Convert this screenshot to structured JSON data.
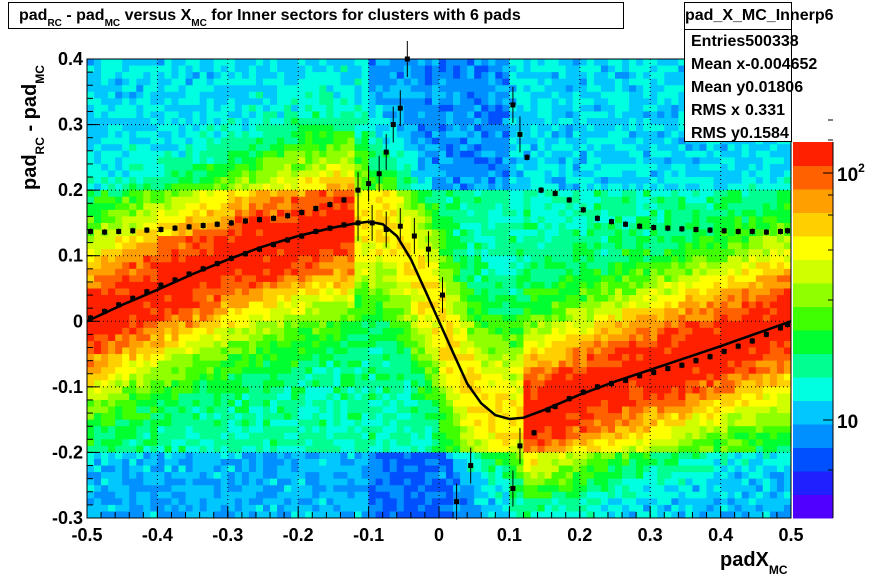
{
  "chart_data": {
    "type": "heatmap",
    "title_parts": [
      "pad",
      "RC",
      " - pad",
      "MC",
      " versus X",
      "MC",
      " for Inner sectors for clusters with 6 pads"
    ],
    "xlabel_main": "padX",
    "xlabel_sub": "MC",
    "ylabel_main": "pad",
    "ylabel_sub1": "RC",
    "ylabel_mid": " - pad",
    "ylabel_sub2": "MC",
    "xlim": [
      -0.5,
      0.5
    ],
    "ylim": [
      -0.3,
      0.4
    ],
    "x_ticks": [
      "-0.5",
      "-0.4",
      "-0.3",
      "-0.2",
      "-0.1",
      "0",
      "0.1",
      "0.2",
      "0.3",
      "0.4",
      "0.5"
    ],
    "y_ticks": [
      "-0.3",
      "-0.2",
      "-0.1",
      "0",
      "0.1",
      "0.2",
      "0.3",
      "0.4"
    ],
    "grid": true,
    "color_scale": "log",
    "colorbar_ticks": [
      "10",
      "10^2"
    ],
    "stats": {
      "name": "pad_X_MC_Innerp6",
      "rows": [
        {
          "label": "Entries",
          "value": "500338"
        },
        {
          "label": "Mean x",
          "value": "-0.004652"
        },
        {
          "label": "Mean y",
          "value": "0.01806"
        },
        {
          "label": "RMS x",
          "value": "0.331"
        },
        {
          "label": "RMS y",
          "value": "0.1584"
        }
      ]
    },
    "profile_points": [
      {
        "x": -0.495,
        "y": 0.005
      },
      {
        "x": -0.475,
        "y": 0.015
      },
      {
        "x": -0.455,
        "y": 0.025
      },
      {
        "x": -0.435,
        "y": 0.035
      },
      {
        "x": -0.415,
        "y": 0.045
      },
      {
        "x": -0.395,
        "y": 0.055
      },
      {
        "x": -0.375,
        "y": 0.063
      },
      {
        "x": -0.355,
        "y": 0.072
      },
      {
        "x": -0.335,
        "y": 0.08
      },
      {
        "x": -0.315,
        "y": 0.088
      },
      {
        "x": -0.295,
        "y": 0.096
      },
      {
        "x": -0.275,
        "y": 0.103
      },
      {
        "x": -0.255,
        "y": 0.11
      },
      {
        "x": -0.235,
        "y": 0.117
      },
      {
        "x": -0.215,
        "y": 0.124
      },
      {
        "x": -0.195,
        "y": 0.13
      },
      {
        "x": -0.175,
        "y": 0.137
      },
      {
        "x": -0.155,
        "y": 0.142
      },
      {
        "x": -0.135,
        "y": 0.147
      },
      {
        "x": -0.115,
        "y": 0.15
      },
      {
        "x": -0.095,
        "y": 0.15
      },
      {
        "x": -0.075,
        "y": 0.14
      },
      {
        "x": -0.055,
        "y": 0.145
      },
      {
        "x": -0.035,
        "y": 0.13
      },
      {
        "x": -0.015,
        "y": 0.11
      },
      {
        "x": 0.005,
        "y": 0.04
      },
      {
        "x": 0.025,
        "y": -0.275
      },
      {
        "x": 0.045,
        "y": -0.22
      },
      {
        "x": 0.105,
        "y": -0.255
      },
      {
        "x": 0.115,
        "y": -0.19
      },
      {
        "x": 0.135,
        "y": -0.17
      },
      {
        "x": 0.155,
        "y": -0.135
      },
      {
        "x": 0.165,
        "y": -0.13
      },
      {
        "x": 0.185,
        "y": -0.118
      },
      {
        "x": 0.205,
        "y": -0.108
      },
      {
        "x": 0.225,
        "y": -0.1
      },
      {
        "x": 0.245,
        "y": -0.095
      },
      {
        "x": 0.265,
        "y": -0.09
      },
      {
        "x": 0.285,
        "y": -0.083
      },
      {
        "x": 0.305,
        "y": -0.078
      },
      {
        "x": 0.325,
        "y": -0.072
      },
      {
        "x": 0.345,
        "y": -0.067
      },
      {
        "x": 0.365,
        "y": -0.06
      },
      {
        "x": 0.385,
        "y": -0.054
      },
      {
        "x": 0.405,
        "y": -0.046
      },
      {
        "x": 0.425,
        "y": -0.038
      },
      {
        "x": 0.445,
        "y": -0.03
      },
      {
        "x": 0.465,
        "y": -0.02
      },
      {
        "x": 0.485,
        "y": -0.01
      },
      {
        "x": 0.495,
        "y": -0.005
      }
    ],
    "upper_points": [
      {
        "x": -0.495,
        "y": 0.137
      },
      {
        "x": -0.475,
        "y": 0.136
      },
      {
        "x": -0.455,
        "y": 0.137
      },
      {
        "x": -0.435,
        "y": 0.138
      },
      {
        "x": -0.415,
        "y": 0.139
      },
      {
        "x": -0.395,
        "y": 0.14
      },
      {
        "x": -0.375,
        "y": 0.142
      },
      {
        "x": -0.355,
        "y": 0.144
      },
      {
        "x": -0.335,
        "y": 0.146
      },
      {
        "x": -0.315,
        "y": 0.148
      },
      {
        "x": -0.295,
        "y": 0.15
      },
      {
        "x": -0.275,
        "y": 0.153
      },
      {
        "x": -0.255,
        "y": 0.155
      },
      {
        "x": -0.235,
        "y": 0.157
      },
      {
        "x": -0.215,
        "y": 0.161
      },
      {
        "x": -0.195,
        "y": 0.166
      },
      {
        "x": -0.175,
        "y": 0.172
      },
      {
        "x": -0.155,
        "y": 0.178
      },
      {
        "x": -0.135,
        "y": 0.185
      },
      {
        "x": -0.115,
        "y": 0.2
      },
      {
        "x": -0.1,
        "y": 0.21
      },
      {
        "x": -0.085,
        "y": 0.225
      },
      {
        "x": -0.075,
        "y": 0.258
      },
      {
        "x": -0.065,
        "y": 0.3
      },
      {
        "x": -0.055,
        "y": 0.325
      },
      {
        "x": -0.045,
        "y": 0.4
      },
      {
        "x": 0.105,
        "y": 0.33
      },
      {
        "x": 0.115,
        "y": 0.285
      },
      {
        "x": 0.125,
        "y": 0.25
      },
      {
        "x": 0.145,
        "y": 0.2
      },
      {
        "x": 0.165,
        "y": 0.195
      },
      {
        "x": 0.185,
        "y": 0.185
      },
      {
        "x": 0.205,
        "y": 0.17
      },
      {
        "x": 0.225,
        "y": 0.157
      },
      {
        "x": 0.245,
        "y": 0.152
      },
      {
        "x": 0.265,
        "y": 0.148
      },
      {
        "x": 0.285,
        "y": 0.145
      },
      {
        "x": 0.305,
        "y": 0.143
      },
      {
        "x": 0.325,
        "y": 0.142
      },
      {
        "x": 0.345,
        "y": 0.141
      },
      {
        "x": 0.365,
        "y": 0.14
      },
      {
        "x": 0.385,
        "y": 0.139
      },
      {
        "x": 0.405,
        "y": 0.138
      },
      {
        "x": 0.425,
        "y": 0.137
      },
      {
        "x": 0.445,
        "y": 0.137
      },
      {
        "x": 0.465,
        "y": 0.136
      },
      {
        "x": 0.485,
        "y": 0.137
      },
      {
        "x": 0.495,
        "y": 0.138
      }
    ],
    "fit_curve": [
      {
        "x": -0.5,
        "y": 0.0
      },
      {
        "x": -0.45,
        "y": 0.025
      },
      {
        "x": -0.4,
        "y": 0.048
      },
      {
        "x": -0.35,
        "y": 0.072
      },
      {
        "x": -0.3,
        "y": 0.094
      },
      {
        "x": -0.25,
        "y": 0.114
      },
      {
        "x": -0.2,
        "y": 0.13
      },
      {
        "x": -0.15,
        "y": 0.143
      },
      {
        "x": -0.12,
        "y": 0.149
      },
      {
        "x": -0.1,
        "y": 0.152
      },
      {
        "x": -0.08,
        "y": 0.148
      },
      {
        "x": -0.06,
        "y": 0.13
      },
      {
        "x": -0.04,
        "y": 0.095
      },
      {
        "x": -0.02,
        "y": 0.048
      },
      {
        "x": 0.0,
        "y": 0.0
      },
      {
        "x": 0.02,
        "y": -0.048
      },
      {
        "x": 0.04,
        "y": -0.095
      },
      {
        "x": 0.06,
        "y": -0.125
      },
      {
        "x": 0.08,
        "y": -0.143
      },
      {
        "x": 0.1,
        "y": -0.149
      },
      {
        "x": 0.12,
        "y": -0.147
      },
      {
        "x": 0.15,
        "y": -0.135
      },
      {
        "x": 0.2,
        "y": -0.112
      },
      {
        "x": 0.25,
        "y": -0.092
      },
      {
        "x": 0.3,
        "y": -0.074
      },
      {
        "x": 0.35,
        "y": -0.056
      },
      {
        "x": 0.4,
        "y": -0.038
      },
      {
        "x": 0.45,
        "y": -0.019
      },
      {
        "x": 0.5,
        "y": 0.0
      }
    ]
  }
}
